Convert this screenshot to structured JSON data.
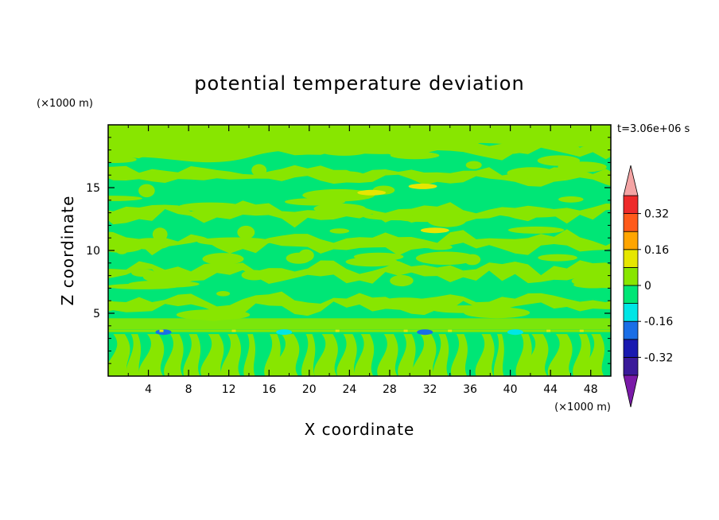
{
  "chart_data": {
    "type": "heatmap",
    "title": "potential temperature deviation",
    "xlabel": "X coordinate",
    "ylabel": "Z coordinate",
    "x_unit": "(×1000 m)",
    "y_unit": "(×1000 m)",
    "time_label": "t=3.06e+06 s",
    "xlim": [
      0,
      50
    ],
    "ylim": [
      0,
      20
    ],
    "x_ticks": [
      4,
      8,
      12,
      16,
      20,
      24,
      28,
      32,
      36,
      40,
      44,
      48
    ],
    "y_ticks": [
      5,
      10,
      15
    ],
    "colorbar": {
      "levels": [
        -0.4,
        -0.32,
        -0.24,
        -0.16,
        -0.08,
        0,
        0.08,
        0.16,
        0.24,
        0.32,
        0.4
      ],
      "tick_labels": [
        "0.32",
        "0.16",
        "0",
        "-0.16",
        "-0.32"
      ],
      "tick_values": [
        0.32,
        0.16,
        0,
        -0.16,
        -0.32
      ],
      "colors": [
        "#3a1a9a",
        "#1a1ab0",
        "#1a6ee6",
        "#00e6e6",
        "#00e676",
        "#88e600",
        "#e6e600",
        "#ffa500",
        "#ff5a1a",
        "#ee2a2a"
      ],
      "under_color": "#7a1aa8",
      "over_color": "#f4a4a4"
    },
    "field": {
      "background_level_color": "#00e676",
      "warm_band_color": "#88e600",
      "features": [
        {
          "kind": "band",
          "z": 18.2,
          "value": 0.04
        },
        {
          "kind": "band",
          "z": 16.0,
          "value": 0.04
        },
        {
          "kind": "band",
          "z": 13.0,
          "value": 0.04
        },
        {
          "kind": "band",
          "z": 10.6,
          "value": 0.04
        },
        {
          "kind": "band",
          "z": 8.3,
          "value": 0.04
        },
        {
          "kind": "band",
          "z": 5.8,
          "value": 0.04
        },
        {
          "kind": "blob",
          "x": 26.2,
          "z": 14.6,
          "value": 0.12
        },
        {
          "kind": "blob",
          "x": 31.3,
          "z": 15.1,
          "value": 0.12
        },
        {
          "kind": "blob",
          "x": 32.5,
          "z": 11.6,
          "value": 0.12
        },
        {
          "kind": "line",
          "z": 3.6,
          "value": 0.04
        },
        {
          "kind": "blob",
          "x": 5.5,
          "z": 3.5,
          "value": -0.2
        },
        {
          "kind": "blob",
          "x": 17.5,
          "z": 3.5,
          "value": -0.12
        },
        {
          "kind": "blob",
          "x": 31.5,
          "z": 3.5,
          "value": -0.2
        },
        {
          "kind": "blob",
          "x": 40.5,
          "z": 3.5,
          "value": -0.12
        }
      ]
    }
  }
}
